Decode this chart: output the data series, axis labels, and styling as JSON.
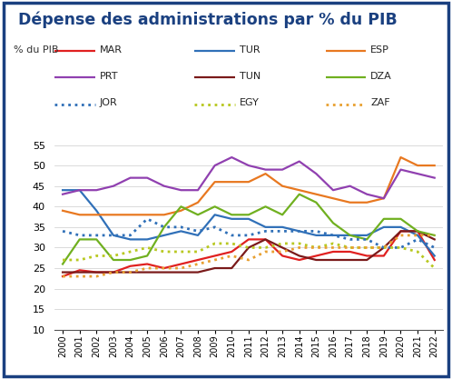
{
  "title": "Dépense des administrations par % du PIB",
  "ylabel": "% du PIB",
  "years": [
    2000,
    2001,
    2002,
    2003,
    2004,
    2005,
    2006,
    2007,
    2008,
    2009,
    2010,
    2011,
    2012,
    2013,
    2014,
    2015,
    2016,
    2017,
    2018,
    2019,
    2020,
    2021,
    2022
  ],
  "series": {
    "MAR": {
      "values": [
        23,
        24.5,
        24,
        24,
        25.5,
        26,
        25,
        26,
        27,
        28,
        29,
        32,
        32,
        28,
        27,
        28,
        29,
        29,
        28,
        28,
        34,
        34,
        27
      ],
      "color": "#e02020",
      "linestyle": "solid",
      "linewidth": 1.6
    },
    "TUR": {
      "values": [
        44,
        44,
        39,
        33,
        32,
        32,
        33,
        34,
        33,
        38,
        37,
        37,
        35,
        35,
        34,
        33,
        33,
        33,
        33,
        35,
        35,
        33,
        28
      ],
      "color": "#3070b8",
      "linestyle": "solid",
      "linewidth": 1.6
    },
    "ESP": {
      "values": [
        39,
        38,
        38,
        38,
        38,
        38,
        38,
        39,
        41,
        46,
        46,
        46,
        48,
        45,
        44,
        43,
        42,
        41,
        41,
        42,
        52,
        50,
        50
      ],
      "color": "#e87820",
      "linestyle": "solid",
      "linewidth": 1.6
    },
    "PRT": {
      "values": [
        43,
        44,
        44,
        45,
        47,
        47,
        45,
        44,
        44,
        50,
        52,
        50,
        49,
        49,
        51,
        48,
        44,
        45,
        43,
        42,
        49,
        48,
        47
      ],
      "color": "#9040b0",
      "linestyle": "solid",
      "linewidth": 1.6
    },
    "TUN": {
      "values": [
        24,
        24,
        24,
        24,
        24,
        24,
        24,
        24,
        24,
        25,
        25,
        30,
        32,
        30,
        28,
        27,
        27,
        27,
        27,
        30,
        34,
        34,
        32
      ],
      "color": "#7a1a1a",
      "linestyle": "solid",
      "linewidth": 1.6
    },
    "DZA": {
      "values": [
        26,
        32,
        32,
        27,
        27,
        28,
        35,
        40,
        38,
        40,
        38,
        38,
        40,
        38,
        43,
        41,
        36,
        33,
        32,
        37,
        37,
        34,
        33
      ],
      "color": "#70b020",
      "linestyle": "solid",
      "linewidth": 1.6
    },
    "JOR": {
      "values": [
        34,
        33,
        33,
        33,
        33,
        37,
        35,
        35,
        34,
        35,
        33,
        33,
        34,
        34,
        34,
        34,
        33,
        32,
        32,
        30,
        30,
        32,
        30
      ],
      "color": "#3070b8",
      "linestyle": "dotted",
      "linewidth": 2.0
    },
    "EGY": {
      "values": [
        27,
        27,
        28,
        28,
        29,
        30,
        29,
        29,
        29,
        31,
        31,
        30,
        30,
        31,
        31,
        30,
        31,
        30,
        30,
        30,
        30,
        29,
        25
      ],
      "color": "#b8c820",
      "linestyle": "dotted",
      "linewidth": 2.0
    },
    "ZAF": {
      "values": [
        23,
        23,
        23,
        24,
        24,
        25,
        25,
        25,
        26,
        27,
        28,
        27,
        29,
        29,
        30,
        30,
        30,
        30,
        30,
        30,
        33,
        33,
        33
      ],
      "color": "#e8a030",
      "linestyle": "dotted",
      "linewidth": 2.0
    }
  },
  "ylim": [
    10,
    58
  ],
  "yticks": [
    10,
    15,
    20,
    25,
    30,
    35,
    40,
    45,
    50,
    55
  ],
  "background_color": "#ffffff",
  "border_color": "#1a4080",
  "title_color": "#1a4080",
  "title_fontsize": 12.5,
  "legend_rows": [
    [
      "MAR",
      "TUR",
      "ESP"
    ],
    [
      "PRT",
      "TUN",
      "DZA"
    ],
    [
      "JOR",
      "EGY",
      "ZAF"
    ]
  ]
}
